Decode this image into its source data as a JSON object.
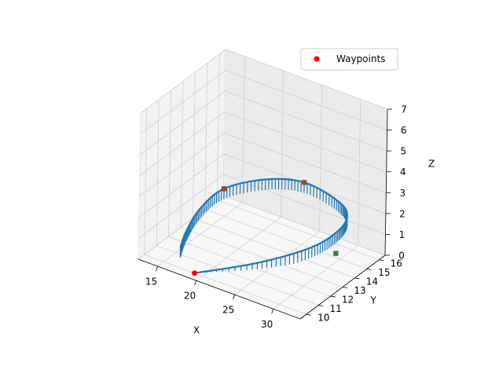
{
  "chart_data": {
    "type": "line3d",
    "title": "",
    "xlabel": "X",
    "ylabel": "Y",
    "zlabel": "Z",
    "xlim": [
      12.5,
      33.5
    ],
    "ylim": [
      9.5,
      16.5
    ],
    "zlim": [
      0,
      7
    ],
    "x_ticks": [
      "15",
      "20",
      "25",
      "30"
    ],
    "y_ticks": [
      "10",
      "11",
      "12",
      "13",
      "14",
      "15",
      "16"
    ],
    "z_ticks": [
      "0",
      "1",
      "2",
      "3",
      "4",
      "5",
      "6",
      "7"
    ],
    "grid": true,
    "legend": {
      "position": "upper-right",
      "entries": [
        {
          "label": "Waypoints",
          "marker": "circle",
          "color": "#ff0000"
        }
      ]
    },
    "series": [
      {
        "kind": "path",
        "color": "#1f77b4",
        "points": [
          [
            19.0,
            10.0,
            0.0
          ],
          [
            24.0,
            12.0,
            0.3
          ],
          [
            27.5,
            14.0,
            0.6
          ],
          [
            29.0,
            15.3,
            1.0
          ],
          [
            29.3,
            16.0,
            1.5
          ],
          [
            28.0,
            16.1,
            2.0
          ],
          [
            24.0,
            15.8,
            2.5
          ],
          [
            21.0,
            14.5,
            2.8
          ],
          [
            18.0,
            13.0,
            2.6
          ],
          [
            16.8,
            11.8,
            2.0
          ],
          [
            16.3,
            11.0,
            1.2
          ],
          [
            16.2,
            10.6,
            0.6
          ]
        ]
      }
    ],
    "waypoints": [
      {
        "x": 19.0,
        "y": 10.0,
        "z": 0.0,
        "color": "#ff0000"
      },
      {
        "x": 29.0,
        "y": 15.3,
        "z": 0.0,
        "color": "#2ca02c"
      },
      {
        "x": 24.0,
        "y": 15.8,
        "z": 2.5,
        "color": "#8c564b"
      },
      {
        "x": 18.0,
        "y": 13.0,
        "z": 2.6,
        "color": "#d62728"
      }
    ],
    "view": {
      "elevation_deg": 30,
      "azimuth_deg": -60
    }
  }
}
